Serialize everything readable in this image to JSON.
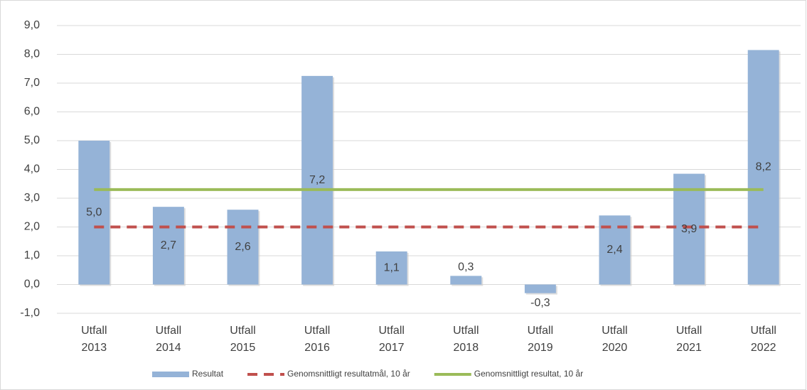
{
  "chart_data": {
    "type": "bar",
    "categories": [
      "Utfall 2013",
      "Utfall 2014",
      "Utfall 2015",
      "Utfall 2016",
      "Utfall 2017",
      "Utfall 2018",
      "Utfall 2019",
      "Utfall 2020",
      "Utfall 2021",
      "Utfall 2022"
    ],
    "series": [
      {
        "name": "Resultat",
        "type": "bar",
        "color": "#95b3d7",
        "values": [
          5.0,
          2.7,
          2.6,
          7.25,
          1.15,
          0.3,
          -0.3,
          2.4,
          3.85,
          8.15
        ],
        "value_labels": [
          "5,0",
          "2,7",
          "2,6",
          "7,2",
          "1,1",
          "0,3",
          "-0,3",
          "2,4",
          "3,9",
          "8,2"
        ]
      },
      {
        "name": "Genomsnittligt resultatmål, 10 år",
        "type": "line",
        "dash": true,
        "color": "#c0504d",
        "values": [
          2.0,
          2.0,
          2.0,
          2.0,
          2.0,
          2.0,
          2.0,
          2.0,
          2.0,
          2.0
        ]
      },
      {
        "name": "Genomsnittligt resultat, 10 år",
        "type": "line",
        "dash": false,
        "color": "#9bbb59",
        "values": [
          3.3,
          3.3,
          3.3,
          3.3,
          3.3,
          3.3,
          3.3,
          3.3,
          3.3,
          3.3
        ]
      }
    ],
    "ylim": [
      -1,
      9
    ],
    "yticks": [
      {
        "value": -1,
        "label": "-1,0"
      },
      {
        "value": 0,
        "label": "0,0"
      },
      {
        "value": 1,
        "label": "1,0"
      },
      {
        "value": 2,
        "label": "2,0"
      },
      {
        "value": 3,
        "label": "3,0"
      },
      {
        "value": 4,
        "label": "4,0"
      },
      {
        "value": 5,
        "label": "5,0"
      },
      {
        "value": 6,
        "label": "6,0"
      },
      {
        "value": 7,
        "label": "7,0"
      },
      {
        "value": 8,
        "label": "8,0"
      },
      {
        "value": 9,
        "label": "9,0"
      }
    ],
    "grid": true,
    "legend": "bottom"
  }
}
